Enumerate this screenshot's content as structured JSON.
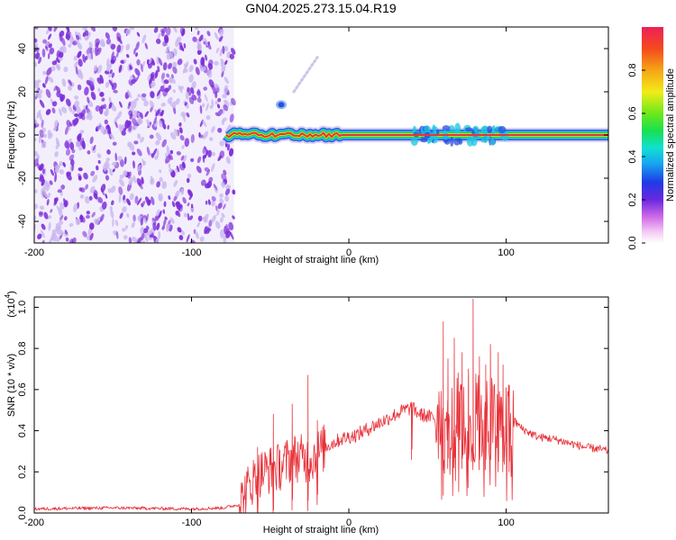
{
  "title": "GN04.2025.273.15.04.R19",
  "colors": {
    "snr_line": "#e8323a",
    "speck": "#7b2bd8",
    "speck_light": "#c9b6ef",
    "band_core": "#e8323a",
    "band_ring_yellow": "#f2e21b",
    "band_ring_green": "#1fd34a",
    "band_ring_cyan": "#1ec6e0",
    "band_ring_blue": "#2a4ee0"
  },
  "chart_data": [
    {
      "type": "heatmap",
      "xlabel": "Height of straight line (km)",
      "ylabel": "Frequency (Hz)",
      "xlim": [
        -200,
        165
      ],
      "ylim": [
        -50,
        50
      ],
      "xticks": [
        -200,
        -100,
        0,
        100
      ],
      "yticks": [
        -40,
        -20,
        0,
        20,
        40
      ],
      "colorbar": {
        "label": "Normalized spectral amplitude",
        "range": [
          0.0,
          1.0
        ],
        "ticks": [
          0.0,
          0.2,
          0.4,
          0.6,
          0.8
        ],
        "tick_labels": [
          "0.0",
          "0.2",
          "0.4",
          "0.6",
          "0.8"
        ],
        "colormap": "rainbow"
      },
      "features": {
        "noise_region_x": [
          -200,
          -73
        ],
        "signal_band_x": [
          -78,
          165
        ],
        "signal_band_frequency_hz": 0,
        "steady_band_start_x": -5,
        "perturbation_x": [
          40,
          100
        ],
        "isolated_blob": {
          "x": -43,
          "frequency_hz": 14
        },
        "faint_streak_x": [
          -35,
          -20
        ],
        "faint_streak_frequency_hz": [
          20,
          36
        ]
      }
    },
    {
      "type": "line",
      "xlabel": "Height of straight line (km)",
      "ylabel": "SNR (10 * v/v)",
      "y_multiplier_label": "(x10",
      "y_multiplier_exponent": "4",
      "y_multiplier_close": ")",
      "xlim": [
        -200,
        165
      ],
      "ylim": [
        0,
        1.05
      ],
      "xticks": [
        -200,
        -100,
        0,
        100
      ],
      "yticks": [
        0.0,
        0.2,
        0.4,
        0.6,
        0.8,
        1.0
      ],
      "ytick_labels": [
        "0.0",
        "0.2",
        "0.4",
        "0.6",
        "0.8",
        "1.0"
      ],
      "series": [
        {
          "style": "noisy",
          "x": [
            -200,
            -150,
            -100,
            -80,
            -70,
            -62,
            -55,
            -45,
            -35,
            -25,
            -15,
            -5,
            5,
            15,
            25,
            35,
            40,
            45,
            50,
            55,
            60,
            65,
            70,
            75,
            80,
            85,
            90,
            95,
            100,
            105,
            110,
            115,
            120,
            130,
            140,
            150,
            160,
            165
          ],
          "values": [
            0.02,
            0.025,
            0.02,
            0.025,
            0.04,
            0.15,
            0.2,
            0.22,
            0.27,
            0.26,
            0.32,
            0.36,
            0.38,
            0.42,
            0.46,
            0.5,
            0.51,
            0.48,
            0.47,
            0.46,
            0.46,
            0.47,
            0.47,
            0.46,
            0.46,
            0.46,
            0.46,
            0.45,
            0.45,
            0.45,
            0.41,
            0.39,
            0.37,
            0.36,
            0.34,
            0.32,
            0.31,
            0.3
          ],
          "spike_peaks": [
            {
              "x": -58,
              "value": 0.32
            },
            {
              "x": -48,
              "value": 0.48
            },
            {
              "x": -36,
              "value": 0.53
            },
            {
              "x": -26,
              "value": 0.67
            },
            {
              "x": -20,
              "value": 0.45
            },
            {
              "x": 40,
              "value": 0.54
            },
            {
              "x": 60,
              "value": 0.93
            },
            {
              "x": 63,
              "value": 0.75
            },
            {
              "x": 67,
              "value": 0.85
            },
            {
              "x": 72,
              "value": 0.78
            },
            {
              "x": 76,
              "value": 0.7
            },
            {
              "x": 79,
              "value": 1.04
            },
            {
              "x": 83,
              "value": 0.76
            },
            {
              "x": 87,
              "value": 0.72
            },
            {
              "x": 90,
              "value": 0.82
            },
            {
              "x": 95,
              "value": 0.78
            },
            {
              "x": 98,
              "value": 0.72
            },
            {
              "x": 102,
              "value": 0.62
            }
          ]
        }
      ]
    }
  ]
}
